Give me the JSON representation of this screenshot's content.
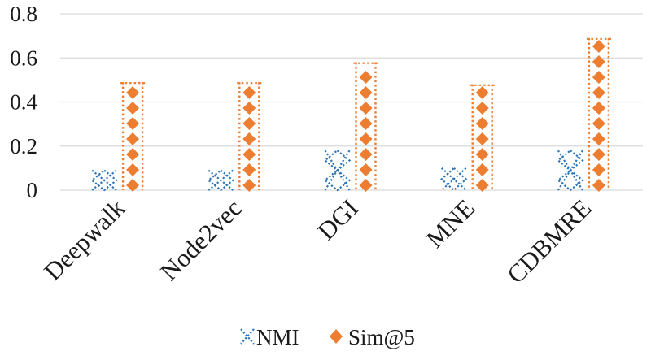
{
  "chart_data": {
    "type": "bar",
    "categories": [
      "Deepwalk",
      "Node2vec",
      "DGI",
      "MNE",
      "CDBMRE"
    ],
    "series": [
      {
        "name": "NMI",
        "values": [
          0.09,
          0.09,
          0.18,
          0.1,
          0.18
        ],
        "color": "#2e75b6",
        "pattern": "dotted-diamond-lattice"
      },
      {
        "name": "Sim@5",
        "values": [
          0.49,
          0.49,
          0.58,
          0.48,
          0.69
        ],
        "color": "#ed7d31",
        "pattern": "dotted-diamond-column"
      }
    ],
    "ylim": [
      0,
      0.8
    ],
    "yticks": [
      "0",
      "0.2",
      "0.4",
      "0.6",
      "0.8"
    ],
    "grid": true,
    "legend_position": "bottom",
    "title": "",
    "xlabel": "",
    "ylabel": ""
  }
}
